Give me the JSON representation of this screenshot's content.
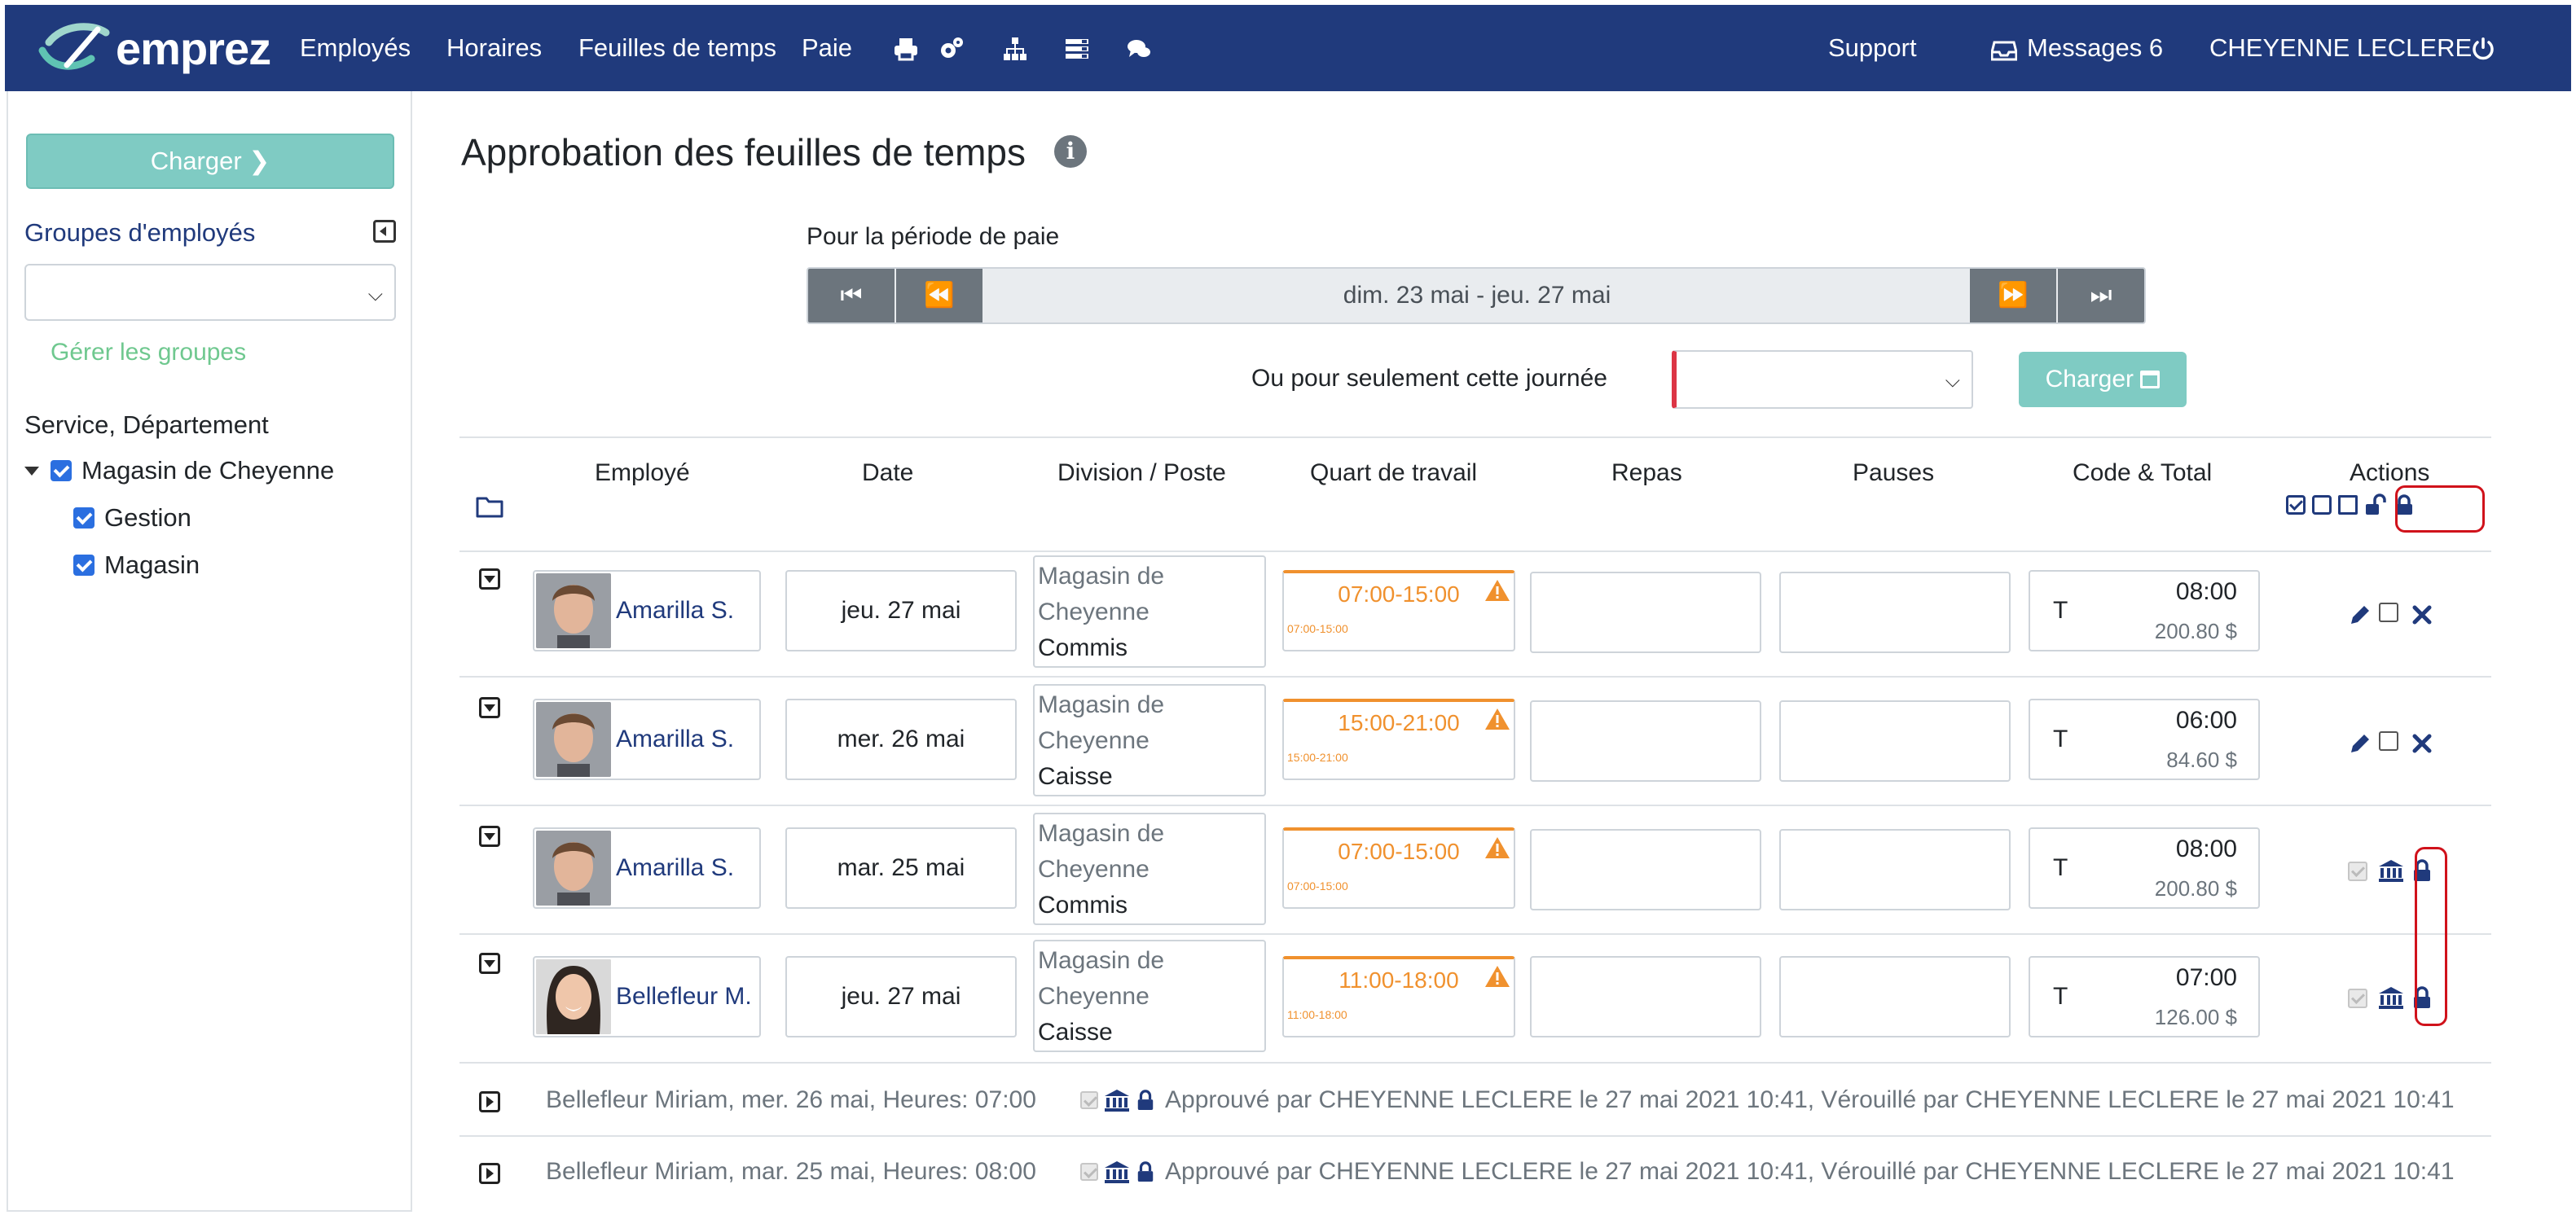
{
  "app": {
    "logo_text": "emprez",
    "nav": [
      "Employés",
      "Horaires",
      "Feuilles de temps",
      "Paie"
    ],
    "nav_icons": [
      "printer-icon",
      "gears-icon",
      "org-chart-icon",
      "list-icon",
      "chat-icon"
    ],
    "support": "Support",
    "messages": "Messages 6",
    "user": "CHEYENNE LECLERE",
    "power_icon": "power-icon",
    "brand_color": "#203a7c"
  },
  "sidebar": {
    "charger": "Charger",
    "groups_label": "Groupes d'employés",
    "groups_value": "",
    "manage_groups": "Gérer les groupes",
    "service_label": "Service, Département",
    "tree": {
      "root": "Magasin de Cheyenne",
      "children": [
        "Gestion",
        "Magasin"
      ]
    }
  },
  "main": {
    "title": "Approbation des feuilles de temps",
    "period_label": "Pour la période de paie",
    "period_range": "dim. 23 mai - jeu. 27 mai",
    "day_label": "Ou pour seulement cette journée",
    "day_value": "",
    "charger": "Charger",
    "columns": [
      "Employé",
      "Date",
      "Division / Poste",
      "Quart de travail",
      "Repas",
      "Pauses",
      "Code & Total",
      "Actions"
    ]
  },
  "rows": [
    {
      "name": "Amarilla S.",
      "date": "jeu. 27 mai",
      "dept": "Magasin de Cheyenne",
      "position": "Commis",
      "shift": "07:00-15:00",
      "shift_small": "07:00-15:00",
      "code": "T",
      "hours": "08:00",
      "amount": "200.80 $",
      "state": "editable"
    },
    {
      "name": "Amarilla S.",
      "date": "mer. 26 mai",
      "dept": "Magasin de Cheyenne",
      "position": "Caisse",
      "shift": "15:00-21:00",
      "shift_small": "15:00-21:00",
      "code": "T",
      "hours": "06:00",
      "amount": "84.60 $",
      "state": "editable"
    },
    {
      "name": "Amarilla S.",
      "date": "mar. 25 mai",
      "dept": "Magasin de Cheyenne",
      "position": "Commis",
      "shift": "07:00-15:00",
      "shift_small": "07:00-15:00",
      "code": "T",
      "hours": "08:00",
      "amount": "200.80 $",
      "state": "locked"
    },
    {
      "name": "Bellefleur M.",
      "date": "jeu. 27 mai",
      "dept": "Magasin de Cheyenne",
      "position": "Caisse",
      "shift": "11:00-18:00",
      "shift_small": "11:00-18:00",
      "code": "T",
      "hours": "07:00",
      "amount": "126.00 $",
      "state": "locked"
    }
  ],
  "collapsed": [
    {
      "summary": "Bellefleur Miriam, mer. 26 mai, Heures: 07:00",
      "status": "Approuvé par CHEYENNE LECLERE le 27 mai 2021 10:41, Vérouillé par CHEYENNE LECLERE le 27 mai 2021 10:41"
    },
    {
      "summary": "Bellefleur Miriam, mar. 25 mai, Heures: 08:00",
      "status": "Approuvé par CHEYENNE LECLERE le 27 mai 2021 10:41, Vérouillé par CHEYENNE LECLERE le 27 mai 2021 10:41"
    }
  ],
  "colors": {
    "shift": "#f0912e",
    "teal_button": "#7fcbc3",
    "highlight": "#d0121b"
  }
}
